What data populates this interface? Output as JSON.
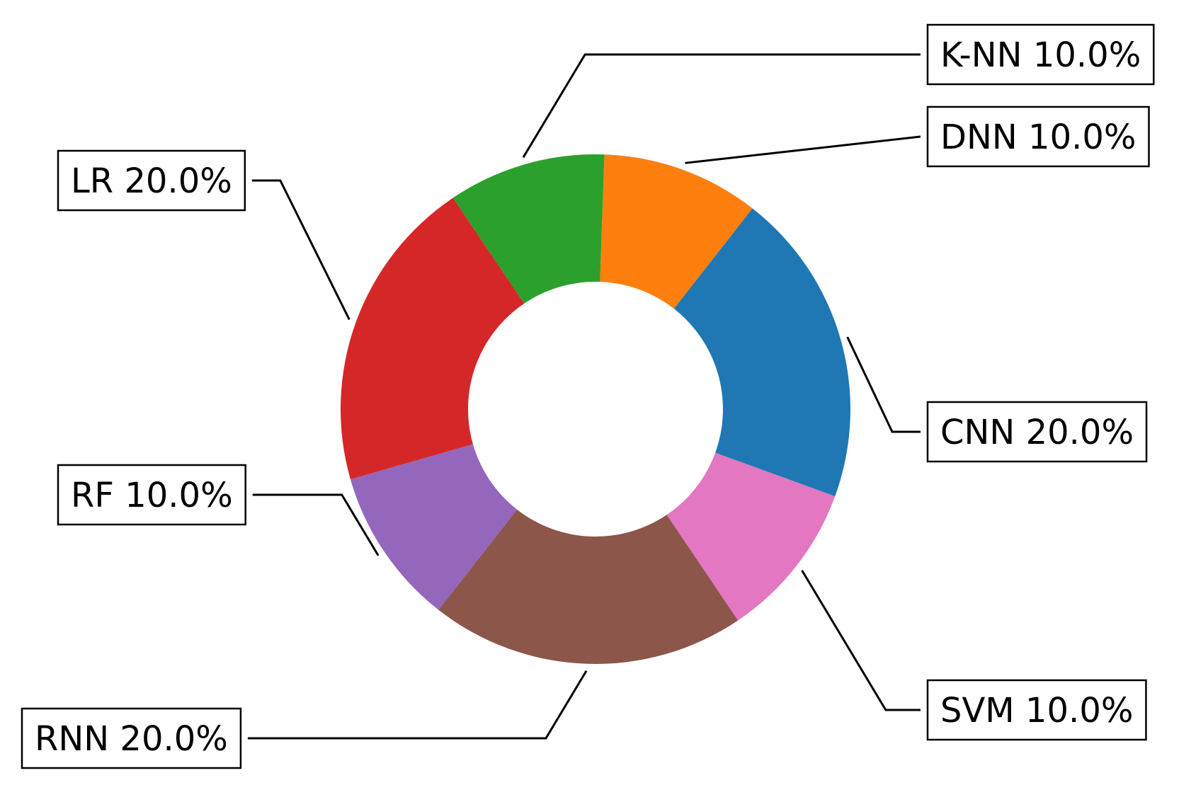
{
  "chart_data": {
    "type": "pie",
    "donut": true,
    "categories": [
      "CNN",
      "DNN",
      "K-NN",
      "LR",
      "RF",
      "RNN",
      "SVM"
    ],
    "values": [
      20.0,
      10.0,
      10.0,
      20.0,
      10.0,
      20.0,
      10.0
    ],
    "labels": [
      "CNN 20.0%",
      "DNN 10.0%",
      "K-NN 10.0%",
      "LR 20.0%",
      "RF 10.0%",
      "RNN 20.0%",
      "SVM 10.0%"
    ],
    "colors": [
      "#1f77b4",
      "#ff7f0e",
      "#2ca02c",
      "#d62728",
      "#9467bd",
      "#8c564b",
      "#e377c2"
    ],
    "title": "",
    "legend": "none"
  }
}
